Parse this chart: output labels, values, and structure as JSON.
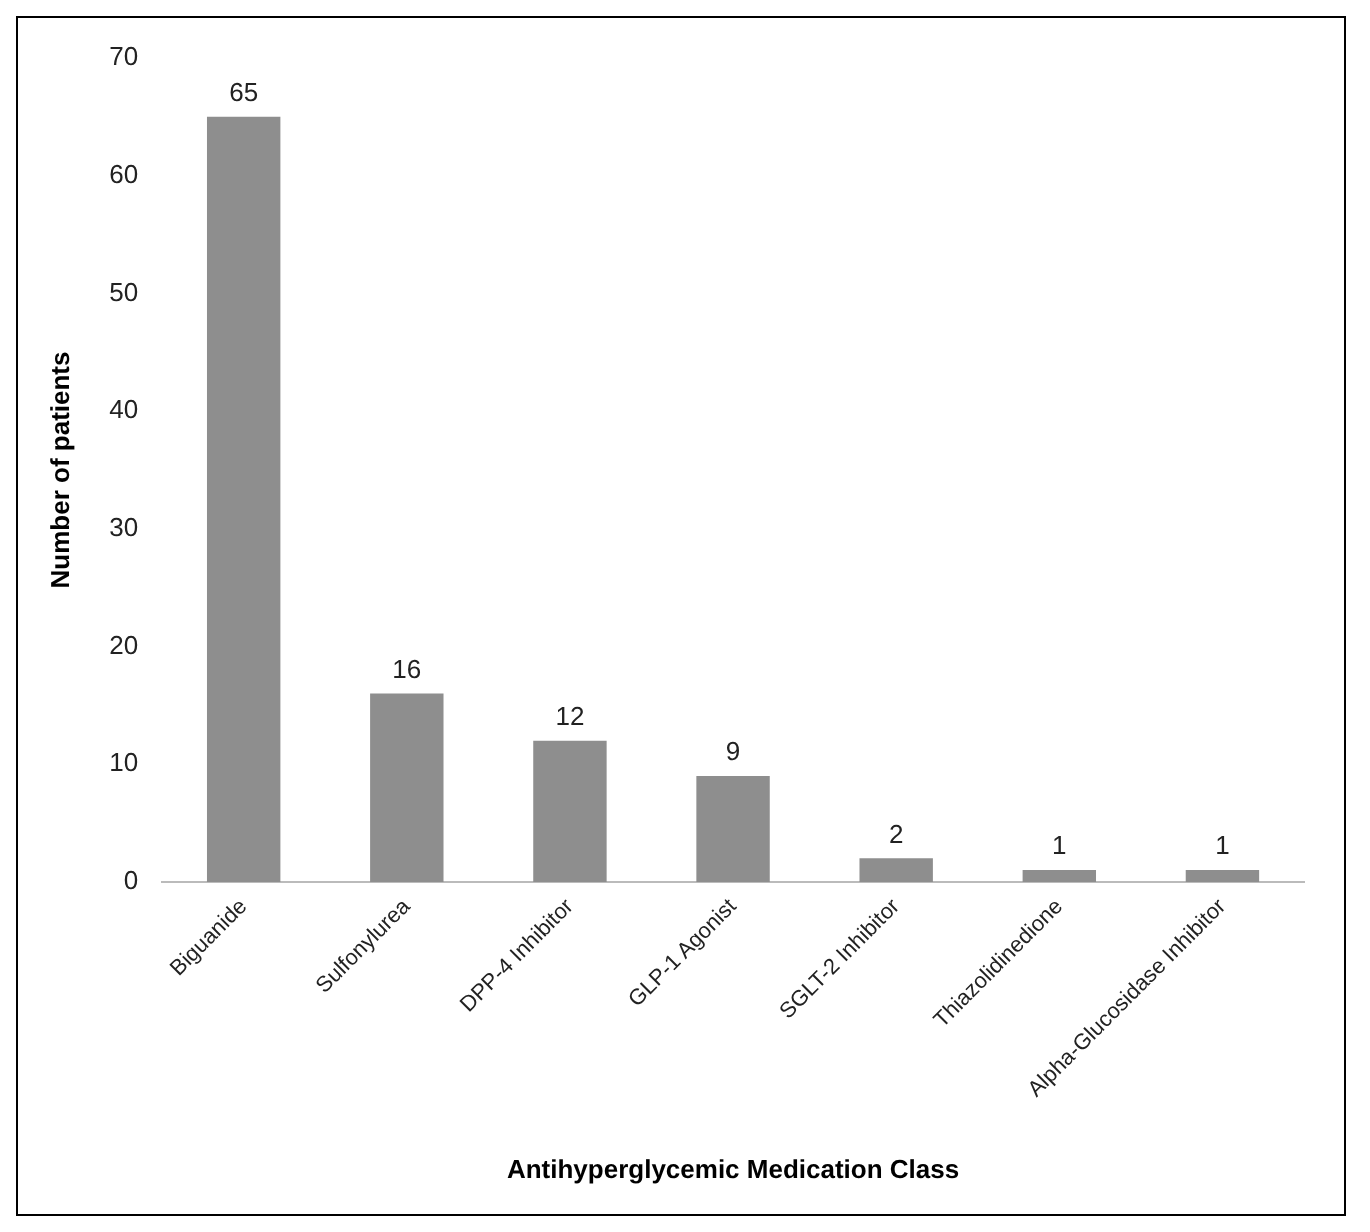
{
  "chart_data": {
    "type": "bar",
    "xlabel": "Antihyperglycemic Medication Class",
    "ylabel": "Number of patients",
    "categories": [
      "Biguanide",
      "Sulfonylurea",
      "DPP-4 Inhibitor",
      "GLP-1 Agonist",
      "SGLT-2 Inhibitor",
      "Thiazolidinedione",
      "Alpha-Glucosidase Inhibitor"
    ],
    "values": [
      65,
      16,
      12,
      9,
      2,
      1,
      1
    ],
    "color": "#8e8e8e",
    "ylim": [
      0,
      70
    ],
    "yticks": [
      0,
      10,
      20,
      30,
      40,
      50,
      60,
      70
    ],
    "grid": false,
    "legend": false,
    "data_labels": true
  }
}
